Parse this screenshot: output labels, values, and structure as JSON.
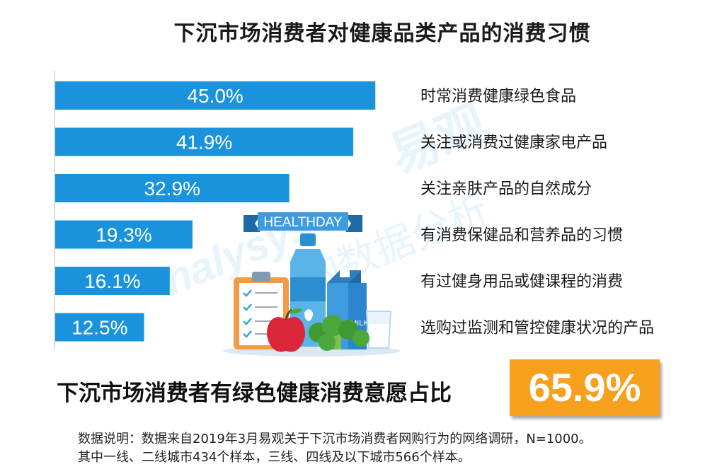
{
  "title": "下沉市场消费者对健康品类产品的消费习惯",
  "colors": {
    "bar": "#1a93dc",
    "badge": "#f7a01e",
    "axis": "#d0d0d0"
  },
  "chart_data": {
    "type": "bar",
    "orientation": "horizontal",
    "title": "下沉市场消费者对健康品类产品的消费习惯",
    "categories": [
      "时常消费健康绿色食品",
      "关注或消费过健康家电产品",
      "关注亲肤产品的自然成分",
      "有消费保健品和营养品的习惯",
      "有过健身用品或健课程的消费",
      "选购过监测和管控健康状况的产品"
    ],
    "values": [
      45.0,
      41.9,
      32.9,
      19.3,
      16.1,
      12.5
    ],
    "value_labels": [
      "45.0%",
      "41.9%",
      "32.9%",
      "19.3%",
      "16.1%",
      "12.5%"
    ],
    "unit": "%",
    "xlim": [
      0,
      50
    ],
    "grid": false,
    "legend": "none"
  },
  "illustration": {
    "banner_text": "HEALTHDAY",
    "milk_text": "MILK",
    "watermark": "Analysys 易观 的数据分析"
  },
  "summary": {
    "label": "下沉市场消费者有绿色健康消费意愿占比",
    "value": "65.9%"
  },
  "note": {
    "line1": "数据说明：数据来自2019年3月易观关于下沉市场消费者网购行为的网络调研，N=1000。",
    "line2": "其中一线、二线城市434个样本，三线、四线及以下城市566个样本。"
  }
}
